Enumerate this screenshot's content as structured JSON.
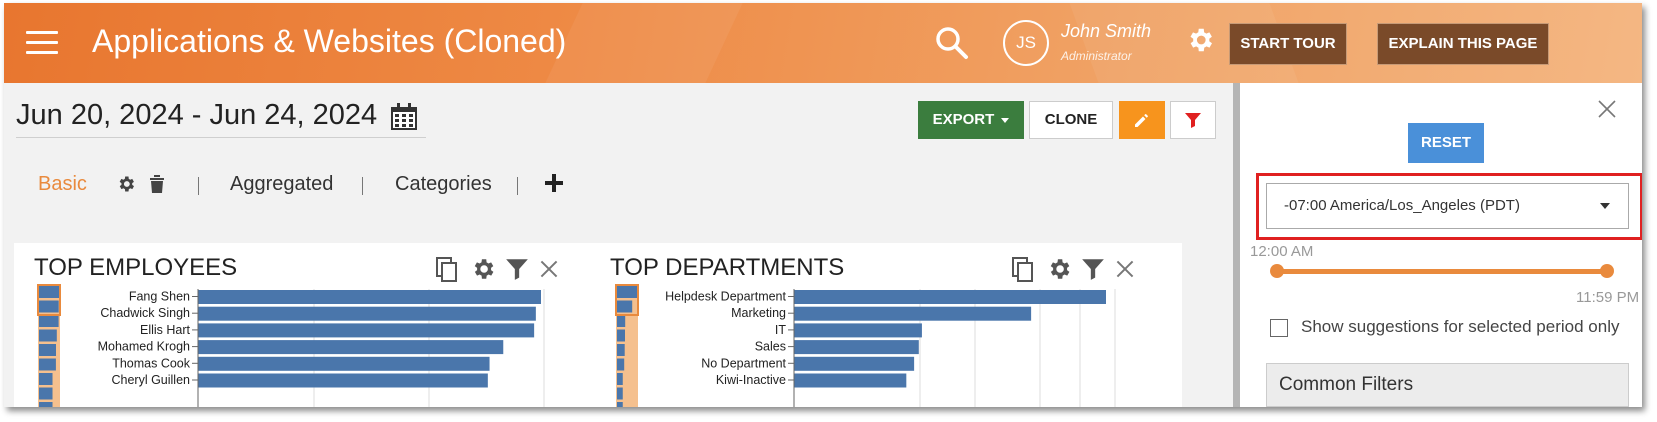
{
  "header": {
    "title": "Applications & Websites (Cloned)",
    "avatar_initials": "JS",
    "user_name": "John Smith",
    "user_role": "Administrator",
    "start_tour_label": "START TOUR",
    "explain_label": "EXPLAIN THIS PAGE"
  },
  "toolbar": {
    "date_range": "Jun 20, 2024 - Jun 24, 2024",
    "export_label": "EXPORT",
    "clone_label": "CLONE"
  },
  "tabs": {
    "basic": "Basic",
    "aggregated": "Aggregated",
    "categories": "Categories"
  },
  "cards": {
    "employees": {
      "title": "TOP EMPLOYEES",
      "rows": [
        {
          "label": "Fang Shen",
          "value": 100
        },
        {
          "label": "Chadwick Singh",
          "value": 98.5
        },
        {
          "label": "Ellis Hart",
          "value": 98
        },
        {
          "label": "Mohamed Krogh",
          "value": 89
        },
        {
          "label": "Thomas Cook",
          "value": 85
        },
        {
          "label": "Cheryl Guillen",
          "value": 84.5
        }
      ]
    },
    "departments": {
      "title": "TOP DEPARTMENTS",
      "rows": [
        {
          "label": "Helpdesk Department",
          "value": 100
        },
        {
          "label": "Marketing",
          "value": 76
        },
        {
          "label": "IT",
          "value": 41
        },
        {
          "label": "Sales",
          "value": 40
        },
        {
          "label": "No Department",
          "value": 38.5
        },
        {
          "label": "Kiwi-Inactive",
          "value": 36
        }
      ]
    }
  },
  "panel": {
    "reset_label": "RESET",
    "timezone": "-07:00 America/Los_Angeles (PDT)",
    "time_start": "12:00 AM",
    "time_end": "11:59 PM",
    "range_start": 0,
    "range_end": 1,
    "suggestions_label": "Show suggestions for selected period only",
    "suggestions_checked": false,
    "common_filters_label": "Common Filters"
  },
  "colors": {
    "accent": "#e98a3d",
    "bar": "#4a76ab",
    "export": "#3b7d3e",
    "reset": "#4a90d9",
    "highlight": "#e02020"
  }
}
